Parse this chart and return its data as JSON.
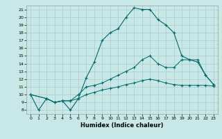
{
  "xlabel": "Humidex (Indice chaleur)",
  "bg_color": "#c8e8e8",
  "line_color": "#006868",
  "grid_color": "#aed0d0",
  "xlim": [
    -0.5,
    23.5
  ],
  "ylim": [
    7.5,
    21.5
  ],
  "xticks": [
    0,
    1,
    2,
    3,
    4,
    5,
    6,
    7,
    8,
    9,
    10,
    11,
    12,
    13,
    14,
    15,
    16,
    17,
    18,
    19,
    20,
    21,
    22,
    23
  ],
  "yticks": [
    8,
    9,
    10,
    11,
    12,
    13,
    14,
    15,
    16,
    17,
    18,
    19,
    20,
    21
  ],
  "line1_x": [
    0,
    1,
    2,
    3,
    4,
    5,
    6,
    7,
    8,
    9,
    10,
    11,
    12,
    13,
    14,
    15,
    16,
    17,
    18,
    19,
    20,
    21,
    22,
    23
  ],
  "line1_y": [
    10,
    8,
    9.5,
    9,
    9.2,
    8,
    9.5,
    12.2,
    14.2,
    17,
    18,
    18.5,
    20,
    21.2,
    21,
    21,
    19.7,
    19,
    18,
    15,
    14.5,
    14.2,
    12.5,
    11.3
  ],
  "line2_x": [
    0,
    2,
    3,
    4,
    5,
    6,
    7,
    8,
    9,
    10,
    11,
    12,
    13,
    14,
    15,
    16,
    17,
    18,
    19,
    20,
    21,
    22,
    23
  ],
  "line2_y": [
    10,
    9.5,
    9,
    9.2,
    9.2,
    10,
    11,
    11.2,
    11.5,
    12,
    12.5,
    13,
    13.5,
    14.5,
    15,
    14,
    13.5,
    13.5,
    14.5,
    14.5,
    14.5,
    12.5,
    11.3
  ],
  "line3_x": [
    0,
    2,
    3,
    4,
    5,
    6,
    7,
    8,
    9,
    10,
    11,
    12,
    13,
    14,
    15,
    16,
    17,
    18,
    19,
    20,
    21,
    22,
    23
  ],
  "line3_y": [
    10,
    9.5,
    9,
    9.2,
    9.2,
    9.5,
    10,
    10.3,
    10.6,
    10.8,
    11,
    11.3,
    11.5,
    11.8,
    12,
    11.8,
    11.5,
    11.3,
    11.2,
    11.2,
    11.2,
    11.2,
    11.1
  ]
}
